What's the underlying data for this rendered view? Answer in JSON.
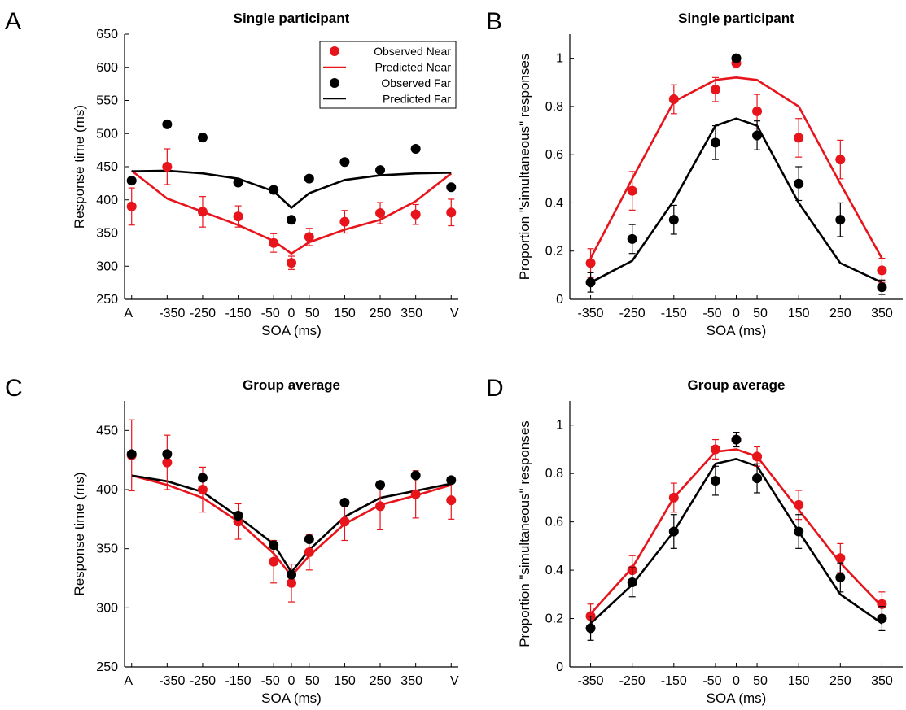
{
  "colors": {
    "near": "#e8141b",
    "far": "#000000",
    "axis": "#000000"
  },
  "chart_data": [
    {
      "panel": "A",
      "type": "line",
      "title": "Single participant",
      "xlabel": "SOA (ms)",
      "ylabel": "Response time (ms)",
      "ylim": [
        250,
        650
      ],
      "yticks": [
        250,
        300,
        350,
        400,
        450,
        500,
        550,
        600,
        650
      ],
      "xticks": [
        {
          "x": -450,
          "label": "A"
        },
        {
          "x": -350,
          "label": "-350"
        },
        {
          "x": -250,
          "label": "-250"
        },
        {
          "x": -150,
          "label": "-150"
        },
        {
          "x": -50,
          "label": "-50"
        },
        {
          "x": 0,
          "label": "0"
        },
        {
          "x": 50,
          "label": "50"
        },
        {
          "x": 150,
          "label": "150"
        },
        {
          "x": 250,
          "label": "250"
        },
        {
          "x": 350,
          "label": "350"
        },
        {
          "x": 450,
          "label": "V"
        }
      ],
      "legend": {
        "position": "top-right",
        "entries": [
          {
            "label": "Observed Near",
            "kind": "marker",
            "color": "near"
          },
          {
            "label": "Predicted Near",
            "kind": "line",
            "color": "near"
          },
          {
            "label": "Observed Far",
            "kind": "marker",
            "color": "far"
          },
          {
            "label": "Predicted Far",
            "kind": "line",
            "color": "far"
          }
        ]
      },
      "x": [
        -450,
        -350,
        -250,
        -150,
        -50,
        0,
        50,
        150,
        250,
        350,
        450
      ],
      "series": [
        {
          "name": "Observed Near",
          "kind": "points",
          "color": "near",
          "y": [
            390,
            450,
            382,
            375,
            335,
            305,
            344,
            367,
            380,
            378,
            381
          ],
          "err": [
            28,
            27,
            23,
            16,
            14,
            10,
            13,
            17,
            16,
            15,
            20
          ]
        },
        {
          "name": "Predicted Near",
          "kind": "line",
          "color": "near",
          "y": [
            444,
            402,
            382,
            362,
            338,
            319,
            336,
            355,
            370,
            398,
            440
          ]
        },
        {
          "name": "Observed Far",
          "kind": "points",
          "color": "far",
          "y": [
            429,
            514,
            494,
            426,
            415,
            370,
            432,
            457,
            445,
            477,
            419
          ]
        },
        {
          "name": "Predicted Far",
          "kind": "line",
          "color": "far",
          "y": [
            443,
            444,
            440,
            432,
            413,
            388,
            410,
            430,
            437,
            440,
            441
          ]
        }
      ]
    },
    {
      "panel": "B",
      "type": "line",
      "title": "Single participant",
      "xlabel": "SOA (ms)",
      "ylabel": "Proportion \"simultaneous\" responses",
      "ylim": [
        0,
        1.1
      ],
      "yticks": [
        0,
        0.2,
        0.4,
        0.6,
        0.8,
        1
      ],
      "xlim": [
        -400,
        400
      ],
      "xticks": [
        {
          "x": -350,
          "label": "-350"
        },
        {
          "x": -250,
          "label": "-250"
        },
        {
          "x": -150,
          "label": "-150"
        },
        {
          "x": -50,
          "label": "-50"
        },
        {
          "x": 0,
          "label": "0"
        },
        {
          "x": 50,
          "label": "50"
        },
        {
          "x": 150,
          "label": "150"
        },
        {
          "x": 250,
          "label": "250"
        },
        {
          "x": 350,
          "label": "350"
        }
      ],
      "x": [
        -350,
        -250,
        -150,
        -50,
        0,
        50,
        150,
        250,
        350
      ],
      "series": [
        {
          "name": "Observed Near",
          "kind": "points",
          "color": "near",
          "y": [
            0.15,
            0.45,
            0.83,
            0.87,
            0.98,
            0.78,
            0.67,
            0.58,
            0.12
          ],
          "err": [
            0.06,
            0.08,
            0.06,
            0.05,
            0.02,
            0.07,
            0.08,
            0.08,
            0.05
          ]
        },
        {
          "name": "Predicted Near",
          "kind": "line",
          "color": "near",
          "y": [
            0.17,
            0.5,
            0.82,
            0.91,
            0.92,
            0.91,
            0.8,
            0.48,
            0.17
          ]
        },
        {
          "name": "Observed Far",
          "kind": "points",
          "color": "far",
          "y": [
            0.07,
            0.25,
            0.33,
            0.65,
            1.0,
            0.68,
            0.48,
            0.33,
            0.05
          ],
          "err": [
            0.04,
            0.06,
            0.06,
            0.07,
            0.01,
            0.06,
            0.07,
            0.07,
            0.03
          ]
        },
        {
          "name": "Predicted Far",
          "kind": "line",
          "color": "far",
          "y": [
            0.07,
            0.16,
            0.41,
            0.72,
            0.75,
            0.72,
            0.4,
            0.15,
            0.07
          ]
        }
      ]
    },
    {
      "panel": "C",
      "type": "line",
      "title": "Group average",
      "xlabel": "SOA (ms)",
      "ylabel": "Response time (ms)",
      "ylim": [
        250,
        475
      ],
      "yticks": [
        250,
        300,
        350,
        400,
        450
      ],
      "xticks": [
        {
          "x": -450,
          "label": "A"
        },
        {
          "x": -350,
          "label": "-350"
        },
        {
          "x": -250,
          "label": "-250"
        },
        {
          "x": -150,
          "label": "-150"
        },
        {
          "x": -50,
          "label": "-50"
        },
        {
          "x": 0,
          "label": "0"
        },
        {
          "x": 50,
          "label": "50"
        },
        {
          "x": 150,
          "label": "150"
        },
        {
          "x": 250,
          "label": "250"
        },
        {
          "x": 350,
          "label": "350"
        },
        {
          "x": 450,
          "label": "V"
        }
      ],
      "x": [
        -450,
        -350,
        -250,
        -150,
        -50,
        0,
        50,
        150,
        250,
        350,
        450
      ],
      "series": [
        {
          "name": "Observed Near",
          "kind": "points",
          "color": "near",
          "y": [
            429,
            423,
            400,
            373,
            339,
            321,
            347,
            373,
            386,
            396,
            391
          ],
          "err": [
            30,
            23,
            19,
            15,
            18,
            16,
            15,
            16,
            20,
            20,
            16
          ]
        },
        {
          "name": "Predicted Near",
          "kind": "line",
          "color": "near",
          "y": [
            412,
            404,
            393,
            373,
            346,
            327,
            344,
            371,
            387,
            395,
            404
          ]
        },
        {
          "name": "Observed Far",
          "kind": "points",
          "color": "far",
          "y": [
            430,
            430,
            410,
            378,
            353,
            328,
            358,
            389,
            404,
            412,
            408
          ]
        },
        {
          "name": "Predicted Far",
          "kind": "line",
          "color": "far",
          "y": [
            412,
            407,
            398,
            377,
            354,
            330,
            349,
            377,
            393,
            399,
            405
          ]
        }
      ]
    },
    {
      "panel": "D",
      "type": "line",
      "title": "Group average",
      "xlabel": "SOA (ms)",
      "ylabel": "Proportion \"simultaneous\" responses",
      "ylim": [
        0,
        1.1
      ],
      "yticks": [
        0,
        0.2,
        0.4,
        0.6,
        0.8,
        1
      ],
      "xlim": [
        -400,
        400
      ],
      "xticks": [
        {
          "x": -350,
          "label": "-350"
        },
        {
          "x": -250,
          "label": "-250"
        },
        {
          "x": -150,
          "label": "-150"
        },
        {
          "x": -50,
          "label": "-50"
        },
        {
          "x": 0,
          "label": "0"
        },
        {
          "x": 50,
          "label": "50"
        },
        {
          "x": 150,
          "label": "150"
        },
        {
          "x": 250,
          "label": "250"
        },
        {
          "x": 350,
          "label": "350"
        }
      ],
      "x": [
        -350,
        -250,
        -150,
        -50,
        0,
        50,
        150,
        250,
        350
      ],
      "series": [
        {
          "name": "Observed Near",
          "kind": "points",
          "color": "near",
          "y": [
            0.21,
            0.4,
            0.7,
            0.9,
            0.94,
            0.87,
            0.67,
            0.45,
            0.26
          ],
          "err": [
            0.05,
            0.06,
            0.06,
            0.04,
            0.03,
            0.04,
            0.06,
            0.06,
            0.05
          ]
        },
        {
          "name": "Predicted Near",
          "kind": "line",
          "color": "near",
          "y": [
            0.22,
            0.41,
            0.7,
            0.89,
            0.9,
            0.87,
            0.65,
            0.43,
            0.25
          ]
        },
        {
          "name": "Observed Far",
          "kind": "points",
          "color": "far",
          "y": [
            0.16,
            0.35,
            0.56,
            0.77,
            0.94,
            0.78,
            0.56,
            0.37,
            0.2
          ],
          "err": [
            0.05,
            0.06,
            0.07,
            0.06,
            0.03,
            0.06,
            0.07,
            0.06,
            0.05
          ]
        },
        {
          "name": "Predicted Far",
          "kind": "line",
          "color": "far",
          "y": [
            0.18,
            0.34,
            0.56,
            0.84,
            0.86,
            0.83,
            0.56,
            0.3,
            0.18
          ]
        }
      ]
    }
  ]
}
